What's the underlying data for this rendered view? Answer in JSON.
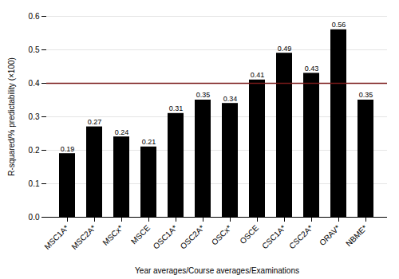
{
  "chart_data": {
    "type": "bar",
    "categories": [
      "MSC1A*",
      "MSC2A*",
      "MSCx*",
      "MSCE",
      "OSC1A*",
      "OSC2A*",
      "OSCx*",
      "OSCE",
      "CSC1A*",
      "CSC2A*",
      "ORAV*",
      "NBME*"
    ],
    "values": [
      0.19,
      0.27,
      0.24,
      0.21,
      0.31,
      0.35,
      0.34,
      0.41,
      0.49,
      0.43,
      0.56,
      0.35
    ],
    "xlabel": "Year averages/Course averages/Examinations",
    "ylabel": "R-squared/% predictability (×100)",
    "ylim": [
      0.0,
      0.6
    ],
    "yticks": [
      {
        "value": 0.0,
        "label": "0.0"
      },
      0.1,
      0.2,
      0.3,
      0.4,
      0.5,
      0.6
    ],
    "reference_line": {
      "value": 0.4,
      "color": "#7a1a1a"
    },
    "grid": true,
    "data_labels": true
  }
}
